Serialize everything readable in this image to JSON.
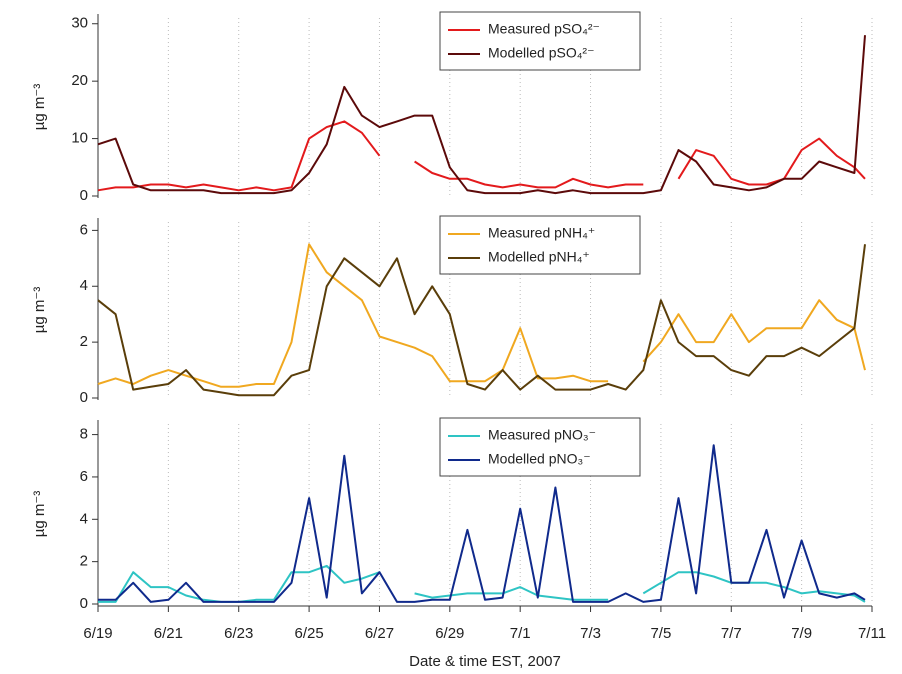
{
  "chart_data": [
    {
      "type": "line",
      "ylabel": "µg m⁻³",
      "xlim": [
        0,
        22
      ],
      "ylim": [
        0,
        31
      ],
      "yticks": [
        0,
        10,
        20,
        30
      ],
      "grid": true,
      "legend": "top",
      "x": [
        0,
        0.5,
        1,
        1.5,
        2,
        2.5,
        3,
        3.5,
        4,
        4.5,
        5,
        5.5,
        6,
        6.5,
        7,
        7.5,
        8,
        8.5,
        9,
        9.5,
        10,
        10.5,
        11,
        11.5,
        12,
        12.5,
        13,
        13.5,
        14,
        14.5,
        15,
        15.5,
        16,
        16.5,
        17,
        17.5,
        18,
        18.5,
        19,
        19.5,
        20,
        20.5,
        21,
        21.5,
        21.8
      ],
      "series": [
        {
          "name": "Measured pSO₄²⁻",
          "color": "#e31a1c",
          "values": [
            1,
            1.5,
            1.5,
            2,
            2,
            1.5,
            2,
            1.5,
            1,
            1.5,
            1,
            1.5,
            10,
            12,
            13,
            11,
            7,
            null,
            6,
            4,
            3,
            3,
            2,
            1.5,
            2,
            1.5,
            1.5,
            3,
            2,
            1.5,
            2,
            2,
            null,
            3,
            8,
            7,
            3,
            2,
            2,
            3,
            8,
            10,
            7,
            5,
            3
          ]
        },
        {
          "name": "Modelled pSO₄²⁻",
          "color": "#5c0a0a",
          "values": [
            9,
            10,
            2,
            1,
            1,
            1,
            1,
            0.5,
            0.5,
            0.5,
            0.5,
            1,
            4,
            9,
            19,
            14,
            12,
            13,
            14,
            14,
            5,
            1,
            0.5,
            0.5,
            0.5,
            1,
            0.5,
            1,
            0.5,
            0.5,
            0.5,
            0.5,
            1,
            8,
            6,
            2,
            1.5,
            1,
            1.5,
            3,
            3,
            6,
            5,
            4,
            28
          ]
        }
      ]
    },
    {
      "type": "line",
      "ylabel": "µg m⁻³",
      "xlim": [
        0,
        22
      ],
      "ylim": [
        0,
        6.3
      ],
      "yticks": [
        0,
        2,
        4,
        6
      ],
      "grid": true,
      "legend": "top",
      "x": [
        0,
        0.5,
        1,
        1.5,
        2,
        2.5,
        3,
        3.5,
        4,
        4.5,
        5,
        5.5,
        6,
        6.5,
        7,
        7.5,
        8,
        8.5,
        9,
        9.5,
        10,
        10.5,
        11,
        11.5,
        12,
        12.5,
        13,
        13.5,
        14,
        14.5,
        15,
        15.5,
        16,
        16.5,
        17,
        17.5,
        18,
        18.5,
        19,
        19.5,
        20,
        20.5,
        21,
        21.5,
        21.8
      ],
      "series": [
        {
          "name": "Measured pNH₄⁺",
          "color": "#f0a820",
          "values": [
            0.5,
            0.7,
            0.5,
            0.8,
            1,
            0.8,
            0.6,
            0.4,
            0.4,
            0.5,
            0.5,
            2,
            5.5,
            4.5,
            4,
            3.5,
            2.2,
            2,
            1.8,
            1.5,
            0.6,
            0.6,
            0.6,
            1,
            2.5,
            0.7,
            0.7,
            0.8,
            0.6,
            0.6,
            null,
            1.3,
            2,
            3,
            2,
            2,
            3,
            2,
            2.5,
            2.5,
            2.5,
            3.5,
            2.8,
            2.5,
            1
          ]
        },
        {
          "name": "Modelled pNH₄⁺",
          "color": "#5a3e0a",
          "values": [
            3.5,
            3,
            0.3,
            0.4,
            0.5,
            1,
            0.3,
            0.2,
            0.1,
            0.1,
            0.1,
            0.8,
            1,
            4,
            5,
            4.5,
            4,
            5,
            3,
            4,
            3,
            0.5,
            0.3,
            1,
            0.3,
            0.8,
            0.3,
            0.3,
            0.3,
            0.5,
            0.3,
            1,
            3.5,
            2,
            1.5,
            1.5,
            1,
            0.8,
            1.5,
            1.5,
            1.8,
            1.5,
            2,
            2.5,
            5.5
          ]
        }
      ]
    },
    {
      "type": "line",
      "ylabel": "µg m⁻³",
      "xlabel": "Date & time EST, 2007",
      "xlim": [
        0,
        22
      ],
      "ylim": [
        0,
        8.5
      ],
      "yticks": [
        0,
        2,
        4,
        6,
        8
      ],
      "grid": true,
      "legend": "top",
      "xticks": [
        {
          "value": 0,
          "label": "6/19"
        },
        {
          "value": 2,
          "label": "6/21"
        },
        {
          "value": 4,
          "label": "6/23"
        },
        {
          "value": 6,
          "label": "6/25"
        },
        {
          "value": 8,
          "label": "6/27"
        },
        {
          "value": 10,
          "label": "6/29"
        },
        {
          "value": 12,
          "label": "7/1"
        },
        {
          "value": 14,
          "label": "7/3"
        },
        {
          "value": 16,
          "label": "7/5"
        },
        {
          "value": 18,
          "label": "7/7"
        },
        {
          "value": 20,
          "label": "7/9"
        },
        {
          "value": 22,
          "label": "7/11"
        }
      ],
      "x": [
        0,
        0.5,
        1,
        1.5,
        2,
        2.5,
        3,
        3.5,
        4,
        4.5,
        5,
        5.5,
        6,
        6.5,
        7,
        7.5,
        8,
        8.5,
        9,
        9.5,
        10,
        10.5,
        11,
        11.5,
        12,
        12.5,
        13,
        13.5,
        14,
        14.5,
        15,
        15.5,
        16,
        16.5,
        17,
        17.5,
        18,
        18.5,
        19,
        19.5,
        20,
        20.5,
        21,
        21.5,
        21.8
      ],
      "series": [
        {
          "name": "Measured pNO₃⁻",
          "color": "#2ec4c4",
          "values": [
            0.1,
            0.1,
            1.5,
            0.8,
            0.8,
            0.4,
            0.2,
            0.1,
            0.1,
            0.2,
            0.2,
            1.5,
            1.5,
            1.8,
            1,
            1.2,
            1.5,
            null,
            0.5,
            0.3,
            0.4,
            0.5,
            0.5,
            0.5,
            0.8,
            0.4,
            0.3,
            0.2,
            0.2,
            0.2,
            null,
            0.5,
            1,
            1.5,
            1.5,
            1.3,
            1,
            1,
            1,
            0.8,
            0.5,
            0.6,
            0.5,
            0.4,
            0.1
          ]
        },
        {
          "name": "Modelled pNO₃⁻",
          "color": "#102a8c",
          "values": [
            0.2,
            0.2,
            1,
            0.1,
            0.2,
            1,
            0.1,
            0.1,
            0.1,
            0.1,
            0.1,
            1,
            5,
            0.3,
            7,
            0.5,
            1.5,
            0.1,
            0.1,
            0.2,
            0.2,
            3.5,
            0.2,
            0.3,
            4.5,
            0.3,
            5.5,
            0.1,
            0.1,
            0.1,
            0.5,
            0.1,
            0.2,
            5,
            0.5,
            7.5,
            1,
            1,
            3.5,
            0.3,
            3,
            0.5,
            0.3,
            0.5,
            0.2
          ]
        }
      ]
    }
  ]
}
